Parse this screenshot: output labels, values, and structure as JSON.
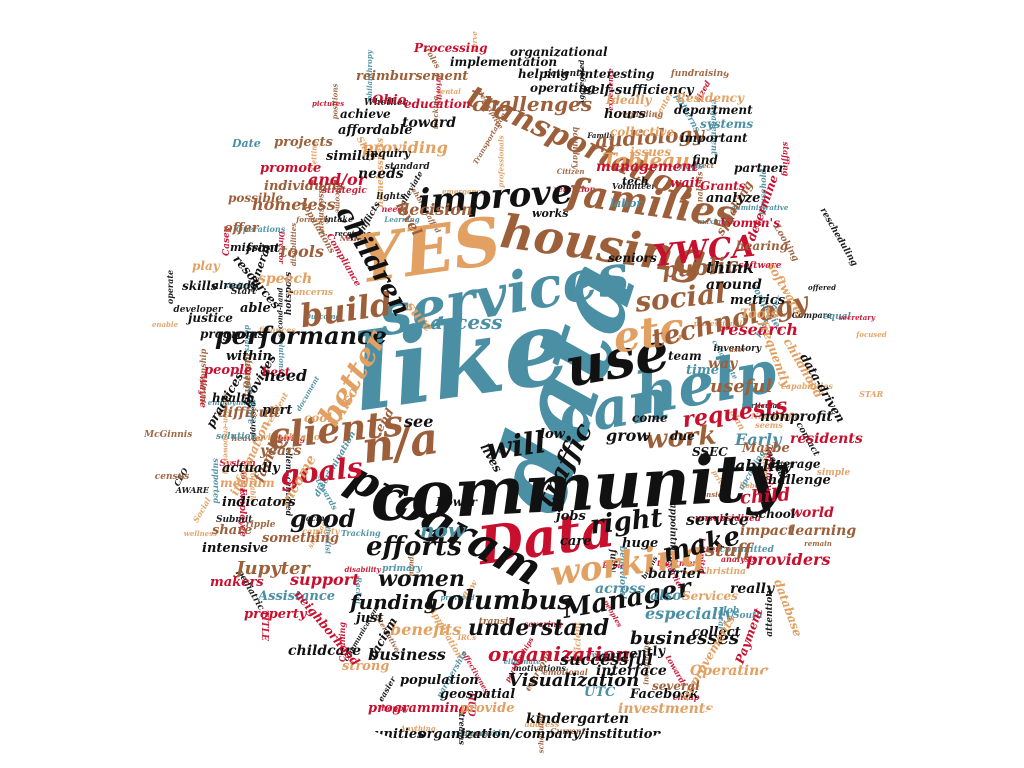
{
  "palette": {
    "teal": "#4a8fa3",
    "tan": "#e2a062",
    "brown": "#9c5f3a",
    "red": "#c8102e",
    "black": "#111111"
  },
  "words": [
    {
      "text": "like",
      "color": "teal"
    },
    {
      "text": "data",
      "color": "teal"
    },
    {
      "text": "community",
      "color": "black"
    },
    {
      "text": "YES",
      "color": "tan"
    },
    {
      "text": "services",
      "color": "teal"
    },
    {
      "text": "help",
      "color": "teal"
    },
    {
      "text": "can",
      "color": "teal"
    },
    {
      "text": "use",
      "color": "black"
    },
    {
      "text": "Data",
      "color": "red"
    },
    {
      "text": "housing",
      "color": "brown"
    },
    {
      "text": "program",
      "color": "black"
    },
    {
      "text": "n/a",
      "color": "brown"
    },
    {
      "text": "etc",
      "color": "tan"
    },
    {
      "text": "families",
      "color": "brown"
    },
    {
      "text": "improve",
      "color": "black"
    },
    {
      "text": "YWCA",
      "color": "red"
    },
    {
      "text": "clients",
      "color": "brown"
    },
    {
      "text": "transportation",
      "color": "brown"
    },
    {
      "text": "working",
      "color": "tan"
    },
    {
      "text": "efforts",
      "color": "black"
    },
    {
      "text": "Columbus",
      "color": "black"
    },
    {
      "text": "Manager",
      "color": "black"
    },
    {
      "text": "build",
      "color": "brown"
    },
    {
      "text": "technology",
      "color": "brown"
    },
    {
      "text": "social",
      "color": "brown"
    },
    {
      "text": "performance",
      "color": "black"
    },
    {
      "text": "better",
      "color": "tan"
    },
    {
      "text": "children",
      "color": "black"
    },
    {
      "text": "will",
      "color": "black"
    },
    {
      "text": "goals",
      "color": "red"
    },
    {
      "text": "traffic",
      "color": "black"
    },
    {
      "text": "work",
      "color": "brown"
    },
    {
      "text": "right",
      "color": "black"
    },
    {
      "text": "understand",
      "color": "black"
    },
    {
      "text": "make",
      "color": "black"
    },
    {
      "text": "requests",
      "color": "red"
    },
    {
      "text": "access",
      "color": "teal"
    },
    {
      "text": "public",
      "color": "brown"
    },
    {
      "text": "good",
      "color": "black"
    },
    {
      "text": "now",
      "color": "teal"
    },
    {
      "text": "women",
      "color": "black"
    },
    {
      "text": "funding",
      "color": "black"
    },
    {
      "text": "organization",
      "color": "red"
    },
    {
      "text": "Visualization",
      "color": "black"
    },
    {
      "text": "businesses",
      "color": "black"
    },
    {
      "text": "audiology",
      "color": "brown"
    },
    {
      "text": "challenges",
      "color": "brown"
    },
    {
      "text": "Tableau",
      "color": "tan"
    },
    {
      "text": "management",
      "color": "red"
    },
    {
      "text": "decision",
      "color": "brown"
    },
    {
      "text": "homeless",
      "color": "brown"
    },
    {
      "text": "research",
      "color": "red"
    },
    {
      "text": "useful",
      "color": "brown"
    },
    {
      "text": "Early",
      "color": "teal"
    },
    {
      "text": "ability",
      "color": "black"
    },
    {
      "text": "child",
      "color": "red"
    },
    {
      "text": "stuff",
      "color": "brown"
    },
    {
      "text": "especially",
      "color": "teal"
    },
    {
      "text": "across",
      "color": "teal"
    },
    {
      "text": "Jupyter",
      "color": "brown"
    },
    {
      "text": "support",
      "color": "red"
    },
    {
      "text": "business",
      "color": "black"
    },
    {
      "text": "benefits",
      "color": "tan"
    },
    {
      "text": "successful",
      "color": "black"
    },
    {
      "text": "kindergarten",
      "color": "black"
    },
    {
      "text": "communities",
      "color": "black"
    },
    {
      "text": "organization/company/institution",
      "color": "black"
    },
    {
      "text": "programming",
      "color": "red"
    },
    {
      "text": "provide",
      "color": "tan"
    },
    {
      "text": "population",
      "color": "black"
    },
    {
      "text": "geospatial",
      "color": "black"
    },
    {
      "text": "childcare",
      "color": "black"
    },
    {
      "text": "strong",
      "color": "tan"
    },
    {
      "text": "Facebook",
      "color": "black"
    },
    {
      "text": "interface",
      "color": "black"
    },
    {
      "text": "currently",
      "color": "black"
    },
    {
      "text": "UTC",
      "color": "teal"
    },
    {
      "text": "investments",
      "color": "tan"
    },
    {
      "text": "Operating",
      "color": "tan"
    },
    {
      "text": "collect",
      "color": "black"
    },
    {
      "text": "improvements",
      "color": "tan"
    },
    {
      "text": "really",
      "color": "black"
    },
    {
      "text": "providers",
      "color": "red"
    },
    {
      "text": "impact",
      "color": "brown"
    },
    {
      "text": "learning",
      "color": "brown"
    },
    {
      "text": "world",
      "color": "red"
    },
    {
      "text": "school",
      "color": "black"
    },
    {
      "text": "service",
      "color": "black"
    },
    {
      "text": "challenge",
      "color": "black"
    },
    {
      "text": "barrier",
      "color": "black"
    },
    {
      "text": "huge",
      "color": "black"
    },
    {
      "text": "jobs",
      "color": "black"
    },
    {
      "text": "care",
      "color": "black"
    },
    {
      "text": "also",
      "color": "teal"
    },
    {
      "text": "Maybe",
      "color": "brown"
    },
    {
      "text": "average",
      "color": "black"
    },
    {
      "text": "residents",
      "color": "red"
    },
    {
      "text": "nonprofit",
      "color": "black"
    },
    {
      "text": "due",
      "color": "black"
    },
    {
      "text": "come",
      "color": "black"
    },
    {
      "text": "grow",
      "color": "black"
    },
    {
      "text": "low",
      "color": "black"
    },
    {
      "text": "see",
      "color": "black"
    },
    {
      "text": "Also",
      "color": "tan"
    },
    {
      "text": "cool",
      "color": "tan"
    },
    {
      "text": "end",
      "color": "brown"
    },
    {
      "text": "part",
      "color": "black"
    },
    {
      "text": "difficult",
      "color": "brown"
    },
    {
      "text": "health",
      "color": "black"
    },
    {
      "text": "information",
      "color": "tan"
    },
    {
      "text": "family",
      "color": "brown"
    },
    {
      "text": "years",
      "color": "brown"
    },
    {
      "text": "income",
      "color": "tan"
    },
    {
      "text": "indicators",
      "color": "black"
    },
    {
      "text": "share",
      "color": "brown"
    },
    {
      "text": "something",
      "color": "brown"
    },
    {
      "text": "intensive",
      "color": "black"
    },
    {
      "text": "makers",
      "color": "red"
    },
    {
      "text": "Assistance",
      "color": "teal"
    },
    {
      "text": "property",
      "color": "red"
    },
    {
      "text": "neighborhood",
      "color": "red"
    },
    {
      "text": "just",
      "color": "black"
    },
    {
      "text": "racism",
      "color": "black"
    },
    {
      "text": "medium",
      "color": "tan"
    },
    {
      "text": "actually",
      "color": "black"
    },
    {
      "text": "provides",
      "color": "black"
    },
    {
      "text": "practices",
      "color": "black"
    },
    {
      "text": "people",
      "color": "red"
    },
    {
      "text": "best",
      "color": "red"
    },
    {
      "text": "within",
      "color": "black"
    },
    {
      "text": "need",
      "color": "black"
    },
    {
      "text": "programs",
      "color": "black"
    },
    {
      "text": "justice",
      "color": "black"
    },
    {
      "text": "skills",
      "color": "black"
    },
    {
      "text": "able",
      "color": "black"
    },
    {
      "text": "play",
      "color": "tan"
    },
    {
      "text": "speech",
      "color": "tan"
    },
    {
      "text": "tools",
      "color": "brown"
    },
    {
      "text": "offer",
      "color": "brown"
    },
    {
      "text": "front",
      "color": "black"
    },
    {
      "text": "possible",
      "color": "brown"
    },
    {
      "text": "individuals",
      "color": "brown"
    },
    {
      "text": "promote",
      "color": "red"
    },
    {
      "text": "similar",
      "color": "black"
    },
    {
      "text": "projects",
      "color": "brown"
    },
    {
      "text": "affordable",
      "color": "black"
    },
    {
      "text": "toward",
      "color": "black"
    },
    {
      "text": "providing",
      "color": "tan"
    },
    {
      "text": "and/or",
      "color": "red"
    },
    {
      "text": "needs",
      "color": "black"
    },
    {
      "text": "level",
      "color": "brown"
    },
    {
      "text": "sure",
      "color": "tan"
    },
    {
      "text": "resources",
      "color": "black"
    },
    {
      "text": "Women's",
      "color": "red"
    },
    {
      "text": "hearing",
      "color": "brown"
    },
    {
      "text": "speaking",
      "color": "brown"
    },
    {
      "text": "Grants",
      "color": "red"
    },
    {
      "text": "think",
      "color": "black"
    },
    {
      "text": "around",
      "color": "black"
    },
    {
      "text": "metrics",
      "color": "black"
    },
    {
      "text": "Tools",
      "color": "tan"
    },
    {
      "text": "team",
      "color": "black"
    },
    {
      "text": "time",
      "color": "teal"
    },
    {
      "text": "way",
      "color": "brown"
    },
    {
      "text": "analyze",
      "color": "black"
    },
    {
      "text": "find",
      "color": "black"
    },
    {
      "text": "wait",
      "color": "red"
    },
    {
      "text": "partner",
      "color": "black"
    },
    {
      "text": "important",
      "color": "black"
    },
    {
      "text": "issues",
      "color": "tan"
    },
    {
      "text": "hours",
      "color": "black"
    },
    {
      "text": "department",
      "color": "black"
    },
    {
      "text": "systems",
      "color": "teal"
    },
    {
      "text": "education",
      "color": "red"
    },
    {
      "text": "Ohio",
      "color": "red"
    },
    {
      "text": "achieve",
      "color": "black"
    },
    {
      "text": "reimbursement",
      "color": "brown"
    },
    {
      "text": "operating",
      "color": "black"
    },
    {
      "text": "implementation",
      "color": "black"
    },
    {
      "text": "helping",
      "color": "black"
    },
    {
      "text": "organizational",
      "color": "black"
    },
    {
      "text": "interesting",
      "color": "black"
    },
    {
      "text": "Processing",
      "color": "red"
    },
    {
      "text": "self-sufficiency",
      "color": "black"
    },
    {
      "text": "collective",
      "color": "tan"
    },
    {
      "text": "Ideally",
      "color": "tan"
    },
    {
      "text": "Residency",
      "color": "tan"
    },
    {
      "text": "determine",
      "color": "red"
    },
    {
      "text": "childhood",
      "color": "tan"
    },
    {
      "text": "data-driven",
      "color": "black"
    },
    {
      "text": "frequently",
      "color": "tan"
    },
    {
      "text": "software",
      "color": "tan"
    },
    {
      "text": "Services",
      "color": "tan"
    },
    {
      "text": "SSEC",
      "color": "black"
    },
    {
      "text": "Power",
      "color": "black"
    },
    {
      "text": "lives",
      "color": "black"
    },
    {
      "text": "database",
      "color": "tan"
    },
    {
      "text": "Payment",
      "color": "red"
    },
    {
      "text": "several",
      "color": "brown"
    },
    {
      "text": "mission",
      "color": "black"
    },
    {
      "text": "seniors",
      "color": "black"
    },
    {
      "text": "general",
      "color": "black"
    },
    {
      "text": "already",
      "color": "black"
    },
    {
      "text": "Date",
      "color": "teal"
    },
    {
      "text": "labor",
      "color": "teal"
    },
    {
      "text": "tech",
      "color": "black"
    },
    {
      "text": "inquiry",
      "color": "black"
    },
    {
      "text": "works",
      "color": "black"
    }
  ],
  "small_words": [
    "employment",
    "profitable",
    "disabilities",
    "needs",
    "alleviate",
    "behavioral",
    "Christina",
    "ripple",
    "cheap",
    "second-hand",
    "Rachel",
    "address",
    "populations",
    "treatment",
    "mental",
    "passenger",
    "Social",
    "transit",
    "HUD",
    "rescheduling",
    "Outcome",
    "efficient",
    "biggest",
    "Director",
    "CEO",
    "South",
    "plan",
    "positions",
    "Babies",
    "developer",
    "document",
    "Robert",
    "Citizen",
    "offers",
    "addressed",
    "supported",
    "rental",
    "remain",
    "peoples",
    "client-centered",
    "dollars",
    "Sheri",
    "census",
    "Wayne",
    "operate",
    "discrimination",
    "homelessness",
    "situation",
    "Currently",
    "lights",
    "ready",
    "Health",
    "integrating",
    "happy",
    "Volunteer",
    "administrative",
    "resident",
    "minds",
    "System",
    "facing",
    "Job",
    "finances",
    "descriptive",
    "staffing",
    "Family",
    "deal",
    "IRCs",
    "Looking",
    "effectiveness",
    "Compare",
    "shelter",
    "Center",
    "formerly",
    "TITLE",
    "AWARE",
    "maximize",
    "System's",
    "regarding",
    "hiring",
    "motivations",
    "Operations",
    "capabilities",
    "Network",
    "Employee",
    "fully",
    "engagement",
    "Non-Profit",
    "welcome",
    "Compliance",
    "particular",
    "upcoming",
    "enable",
    "consider",
    "rather",
    "easier",
    "household",
    "visualization",
    "Assessment",
    "analysis",
    "Aggregated",
    "committed",
    "shortage",
    "Transportation",
    "average",
    "Submit",
    "equal",
    "Application",
    "Analysis",
    "towards",
    "communications",
    "Tracking",
    "STAR",
    "scheduled",
    "strategic",
    "appointments",
    "Learning",
    "Anything",
    "emotional",
    "partnerships",
    "contact",
    "companies",
    "emergency",
    "relationship",
    "secretary",
    "standard",
    "dentist",
    "professional",
    "fundraising",
    "Cleaning",
    "hotspots",
    "patterns",
    "simple",
    "heavier",
    "disability",
    "brains",
    "primary",
    "private",
    "alternative",
    "sized",
    "conflicts",
    "eliminate",
    "Getting",
    "roles",
    "Casey",
    "pediatric",
    "collaborate",
    "focused",
    "boundary",
    "unsubsidized",
    "attention",
    "solution",
    "professionals",
    "short-staffed",
    "hospital",
    "Start",
    "provided",
    "capacity",
    "Current",
    "pictures",
    "inventory",
    "stewards",
    "wellness",
    "Benefit",
    "experience",
    "streams",
    "philanthropy",
    "seems",
    "direct",
    "earlier",
    "patients",
    "maps",
    "concerns",
    "tracking",
    "software",
    "intake",
    "measure",
    "serve",
    "user",
    "retention",
    "offered",
    "partnership",
    "flow",
    "everyone",
    "covering",
    "receiving",
    "system-wide",
    "mission-empowering",
    "McGinnis",
    "priority",
    "Whether",
    "Solutions"
  ]
}
